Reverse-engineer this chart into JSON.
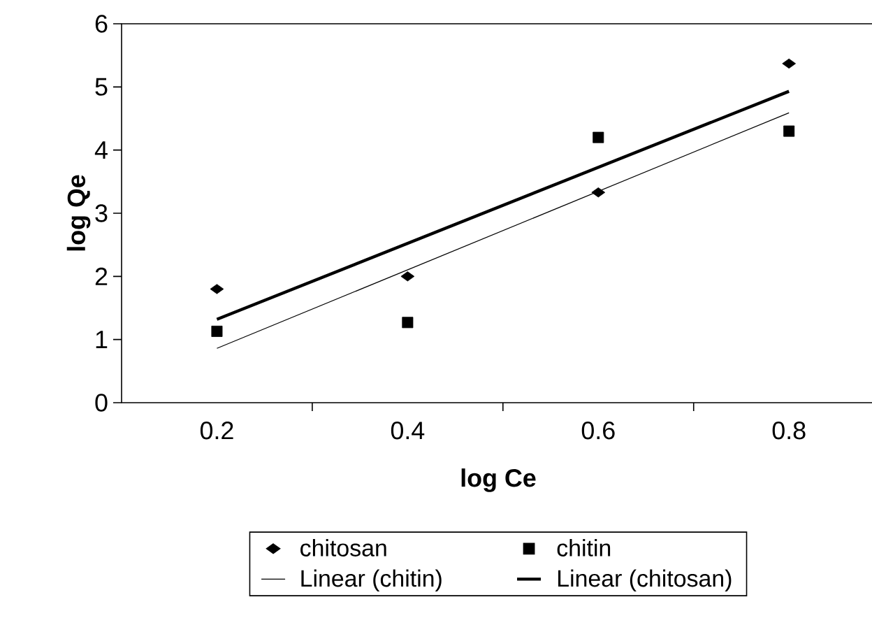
{
  "chart_data": {
    "type": "scatter",
    "xlabel": "log Ce",
    "ylabel": "log Qe",
    "xlim": [
      0.1,
      0.89
    ],
    "ylim": [
      0,
      6
    ],
    "xticks": [
      {
        "value": 0.2,
        "label": "0.2"
      },
      {
        "value": 0.3,
        "label": null
      },
      {
        "value": 0.4,
        "label": "0.4"
      },
      {
        "value": 0.5,
        "label": null
      },
      {
        "value": 0.6,
        "label": "0.6"
      },
      {
        "value": 0.7,
        "label": null
      },
      {
        "value": 0.8,
        "label": "0.8"
      }
    ],
    "yticks": [
      0,
      1,
      2,
      3,
      4,
      5,
      6
    ],
    "grid": false,
    "legend": "bottom",
    "series": [
      {
        "name": "chitosan",
        "marker": "diamond",
        "color": "#000000",
        "x": [
          0.2,
          0.4,
          0.6,
          0.8
        ],
        "values": [
          1.8,
          2.0,
          3.33,
          5.37
        ]
      },
      {
        "name": "chitin",
        "marker": "square",
        "color": "#000000",
        "x": [
          0.2,
          0.4,
          0.6,
          0.8
        ],
        "values": [
          1.13,
          1.27,
          4.2,
          4.3
        ]
      },
      {
        "name": "Linear (chitin)",
        "type": "line",
        "marker": "none",
        "color": "#000000",
        "x": [
          0.2,
          0.8
        ],
        "values": [
          0.86,
          4.59
        ]
      },
      {
        "name": "Linear (chitosan)",
        "type": "line",
        "marker": "none",
        "color": "#000000",
        "x": [
          0.2,
          0.8
        ],
        "values": [
          1.32,
          4.93
        ]
      }
    ]
  }
}
